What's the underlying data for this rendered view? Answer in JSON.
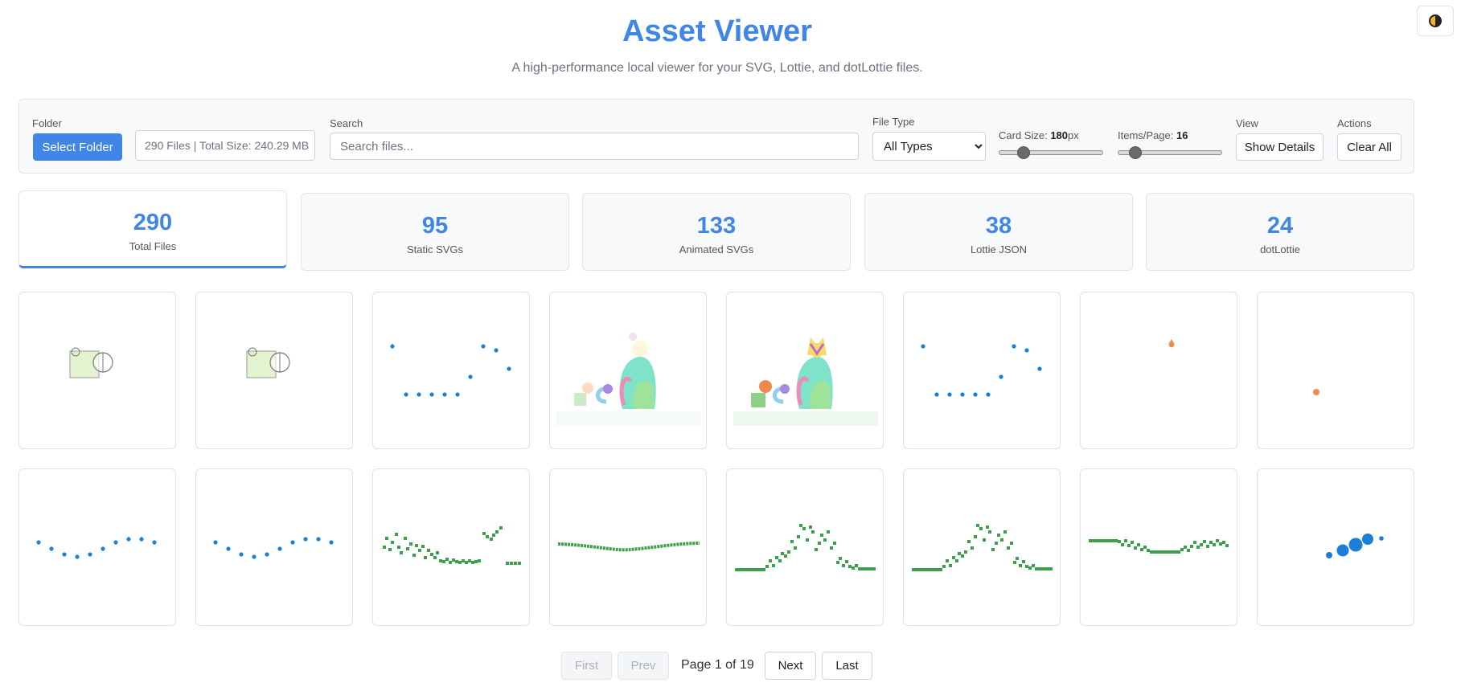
{
  "header": {
    "title": "Asset Viewer",
    "subtitle": "A high-performance local viewer for your SVG, Lottie, and dotLottie files."
  },
  "theme_toggle": {
    "icon": "half-circle-contrast-icon"
  },
  "controls": {
    "folder_label": "Folder",
    "select_folder_label": "Select Folder",
    "folder_info": "290 Files | Total Size: 240.29 MB",
    "search_label": "Search",
    "search_placeholder": "Search files...",
    "filetype_label": "File Type",
    "filetype_selected": "All Types",
    "card_size_label": "Card Size:",
    "card_size_value": "180",
    "card_size_unit": "px",
    "card_size_fraction": 0.2,
    "items_label": "Items/Page:",
    "items_value": "16",
    "items_fraction": 0.12,
    "view_label": "View",
    "show_details_label": "Show Details",
    "actions_label": "Actions",
    "clear_all_label": "Clear All"
  },
  "stats": [
    {
      "value": "290",
      "label": "Total Files",
      "active": true
    },
    {
      "value": "95",
      "label": "Static SVGs"
    },
    {
      "value": "133",
      "label": "Animated SVGs"
    },
    {
      "value": "38",
      "label": "Lottie JSON"
    },
    {
      "value": "24",
      "label": "dotLottie"
    }
  ],
  "colors": {
    "accent": "#3f86e6",
    "dot_blue": "#1a7fd6",
    "dot_green": "#3aa14a",
    "orange": "#f08a4b",
    "light_green": "#e3f2cf"
  },
  "cards": [
    {
      "preview": "square-circle-icon"
    },
    {
      "preview": "square-circle-icon"
    },
    {
      "preview": "blue-dots-u-shape"
    },
    {
      "preview": "cat-illustration-faded"
    },
    {
      "preview": "cat-illustration"
    },
    {
      "preview": "blue-dots-u-shape"
    },
    {
      "preview": "single-orange-dot-top"
    },
    {
      "preview": "single-orange-dot-center"
    },
    {
      "preview": "blue-dots-wave"
    },
    {
      "preview": "blue-dots-wave"
    },
    {
      "preview": "green-dots-scatter-decline"
    },
    {
      "preview": "green-dots-flat-line"
    },
    {
      "preview": "green-dots-peak"
    },
    {
      "preview": "green-dots-peak"
    },
    {
      "preview": "green-dots-shallow-valley"
    },
    {
      "preview": "blue-dots-growing"
    }
  ],
  "pagination": {
    "first_label": "First",
    "prev_label": "Prev",
    "page_info": "Page 1 of 19",
    "next_label": "Next",
    "last_label": "Last"
  }
}
